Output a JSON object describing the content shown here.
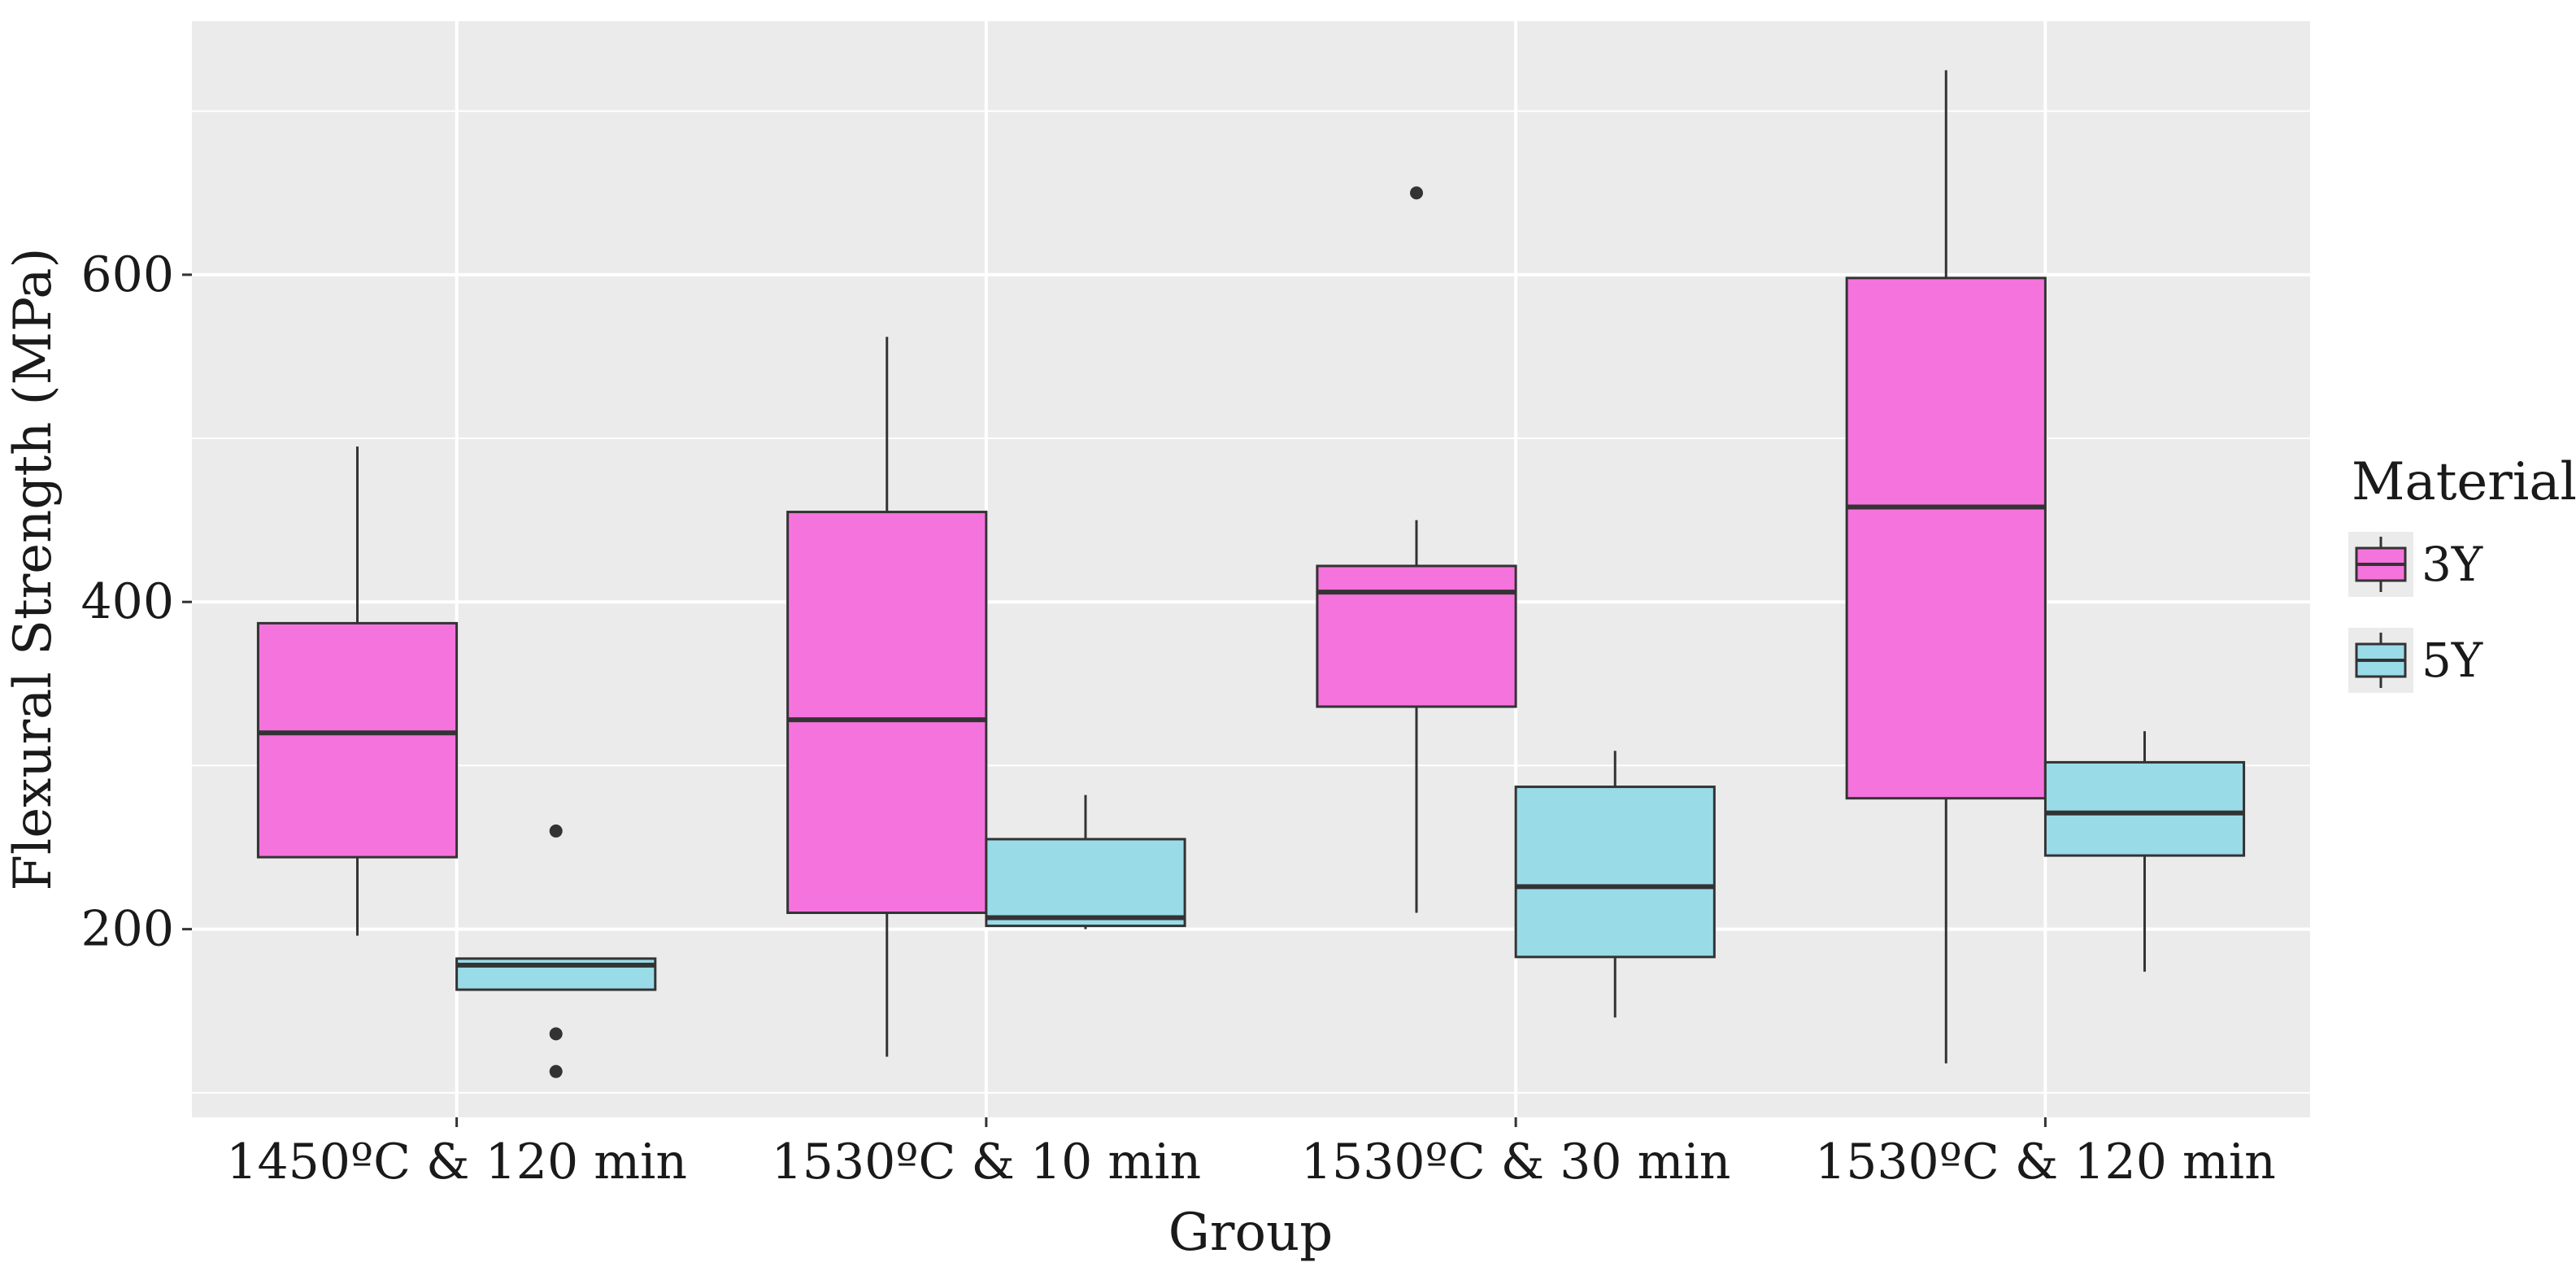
{
  "chart_data": {
    "type": "boxplot",
    "title": "",
    "xlabel": "Group",
    "ylabel": "Flexural Strength (MPa)",
    "ylim": [
      85,
      755
    ],
    "yticks": [
      200,
      400,
      600
    ],
    "grid": true,
    "categories": [
      "1450ºC & 120 min",
      "1530ºC & 10 min",
      "1530ºC & 30 min",
      "1530ºC & 120 min"
    ],
    "legend": {
      "title": "Material",
      "position": "right"
    },
    "series": [
      {
        "name": "3Y",
        "color": "#f573dc",
        "boxes": [
          {
            "whisker_low": 196,
            "q1": 244,
            "median": 320,
            "q3": 387,
            "whisker_high": 495,
            "outliers": []
          },
          {
            "whisker_low": 122,
            "q1": 210,
            "median": 328,
            "q3": 455,
            "whisker_high": 562,
            "outliers": []
          },
          {
            "whisker_low": 210,
            "q1": 336,
            "median": 406,
            "q3": 422,
            "whisker_high": 450,
            "outliers": [
              650
            ]
          },
          {
            "whisker_low": 118,
            "q1": 280,
            "median": 458,
            "q3": 598,
            "whisker_high": 725,
            "outliers": []
          }
        ]
      },
      {
        "name": "5Y",
        "color": "#9adbe8",
        "boxes": [
          {
            "whisker_low": 163,
            "q1": 163,
            "median": 178,
            "q3": 182,
            "whisker_high": 182,
            "outliers": [
              260,
              136,
              113
            ]
          },
          {
            "whisker_low": 200,
            "q1": 202,
            "median": 207,
            "q3": 255,
            "whisker_high": 282,
            "outliers": []
          },
          {
            "whisker_low": 146,
            "q1": 183,
            "median": 226,
            "q3": 287,
            "whisker_high": 309,
            "outliers": []
          },
          {
            "whisker_low": 174,
            "q1": 245,
            "median": 271,
            "q3": 302,
            "whisker_high": 321,
            "outliers": []
          }
        ]
      }
    ]
  }
}
